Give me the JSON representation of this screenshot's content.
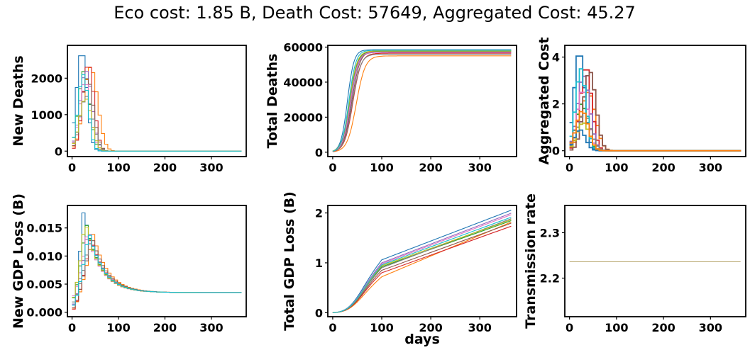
{
  "figure": {
    "suptitle": "Eco cost: 1.85 B, Death Cost: 57649, Aggregated Cost: 45.27"
  },
  "colors": [
    "#1f77b4",
    "#ff7f0e",
    "#2ca02c",
    "#d62728",
    "#9467bd",
    "#8c564b",
    "#e377c2",
    "#7f7f7f",
    "#bcbd22",
    "#17becf"
  ],
  "chart_data": [
    {
      "id": "new_deaths",
      "type": "line",
      "step": true,
      "ylabel": "New Deaths",
      "xlabel": "",
      "xlim": [
        -10,
        375
      ],
      "ylim": [
        -150,
        2900
      ],
      "xticks": [
        0,
        100,
        200,
        300
      ],
      "yticks": [
        0,
        1000,
        2000
      ],
      "series": [
        {
          "peak_day": 21,
          "peak": 2750,
          "width": 11
        },
        {
          "peak_day": 40,
          "peak": 2300,
          "width": 15
        },
        {
          "peak_day": 26,
          "peak": 2200,
          "width": 12
        },
        {
          "peak_day": 35,
          "peak": 2400,
          "width": 12
        },
        {
          "peak_day": 30,
          "peak": 2200,
          "width": 13
        },
        {
          "peak_day": 33,
          "peak": 2000,
          "width": 13
        },
        {
          "peak_day": 28,
          "peak": 1900,
          "width": 12
        },
        {
          "peak_day": 31,
          "peak": 1500,
          "width": 14
        },
        {
          "peak_day": 29,
          "peak": 1450,
          "width": 13
        },
        {
          "peak_day": 24,
          "peak": 2100,
          "width": 11
        }
      ]
    },
    {
      "id": "total_deaths",
      "type": "line",
      "ylabel": "Total Deaths",
      "xlabel": "",
      "xlim": [
        -10,
        375
      ],
      "ylim": [
        -2500,
        61000
      ],
      "xticks": [
        0,
        100,
        200,
        300
      ],
      "yticks": [
        0,
        20000,
        40000,
        60000
      ],
      "series": [
        {
          "final": 58500,
          "midpoint_day": 30,
          "rate": 0.15
        },
        {
          "final": 55000,
          "midpoint_day": 48,
          "rate": 0.11
        },
        {
          "final": 57500,
          "midpoint_day": 35,
          "rate": 0.13
        },
        {
          "final": 56500,
          "midpoint_day": 41,
          "rate": 0.12
        },
        {
          "final": 57000,
          "midpoint_day": 37,
          "rate": 0.13
        },
        {
          "final": 58000,
          "midpoint_day": 39,
          "rate": 0.12
        },
        {
          "final": 57200,
          "midpoint_day": 36,
          "rate": 0.13
        },
        {
          "final": 56000,
          "midpoint_day": 40,
          "rate": 0.12
        },
        {
          "final": 57800,
          "midpoint_day": 34,
          "rate": 0.13
        },
        {
          "final": 58200,
          "midpoint_day": 33,
          "rate": 0.14
        }
      ]
    },
    {
      "id": "aggregated_cost",
      "type": "line",
      "step": true,
      "ylabel": "Aggregated Cost",
      "xlabel": "",
      "xlim": [
        -10,
        375
      ],
      "ylim": [
        -0.25,
        4.5
      ],
      "xticks": [
        0,
        100,
        200,
        300
      ],
      "yticks": [
        0,
        2,
        4
      ],
      "series": [
        {
          "peak_day": 21,
          "peak": 4.25,
          "width": 11
        },
        {
          "peak_day": 40,
          "peak": 2.5,
          "width": 15
        },
        {
          "peak_day": 26,
          "peak": 2.0,
          "width": 12
        },
        {
          "peak_day": 35,
          "peak": 3.6,
          "width": 12
        },
        {
          "peak_day": 30,
          "peak": 3.2,
          "width": 13
        },
        {
          "peak_day": 43,
          "peak": 3.4,
          "width": 13
        },
        {
          "peak_day": 28,
          "peak": 2.6,
          "width": 12
        },
        {
          "peak_day": 31,
          "peak": 1.6,
          "width": 14
        },
        {
          "peak_day": 29,
          "peak": 1.2,
          "width": 13
        },
        {
          "peak_day": 24,
          "peak": 3.5,
          "width": 11
        },
        {
          "peak_day": 22,
          "peak": 0.9,
          "width": 12
        },
        {
          "peak_day": 27,
          "peak": 1.7,
          "width": 13
        }
      ]
    },
    {
      "id": "new_gdp_loss",
      "type": "line",
      "step": true,
      "ylabel": "New GDP Loss (B)",
      "xlabel": "",
      "xlim": [
        -10,
        375
      ],
      "ylim": [
        -0.0008,
        0.019
      ],
      "xticks": [
        0,
        100,
        200,
        300
      ],
      "yticks": [
        0.0,
        0.005,
        0.01,
        0.015
      ],
      "ytick_labels": [
        "0.000",
        "0.005",
        "0.010",
        "0.015"
      ],
      "baseline": 0.0035,
      "series": [
        {
          "peak_day": 25,
          "peak": 0.0182,
          "start": 0.0005
        },
        {
          "peak_day": 45,
          "peak": 0.014,
          "start": 0.0003
        },
        {
          "peak_day": 30,
          "peak": 0.016,
          "start": 0.002
        },
        {
          "peak_day": 40,
          "peak": 0.0135,
          "start": 0.0002
        },
        {
          "peak_day": 35,
          "peak": 0.015,
          "start": 0.001
        },
        {
          "peak_day": 42,
          "peak": 0.0138,
          "start": 0.0005
        },
        {
          "peak_day": 33,
          "peak": 0.0142,
          "start": 0.0025
        },
        {
          "peak_day": 38,
          "peak": 0.013,
          "start": 0.0015
        },
        {
          "peak_day": 28,
          "peak": 0.0165,
          "start": 0.002
        },
        {
          "peak_day": 36,
          "peak": 0.0145,
          "start": 0.0008
        }
      ]
    },
    {
      "id": "total_gdp_loss",
      "type": "line",
      "ylabel": "Total GDP Loss (B)",
      "xlabel": "days",
      "xlim": [
        -10,
        375
      ],
      "ylim": [
        -0.08,
        2.15
      ],
      "xticks": [
        0,
        100,
        200,
        300
      ],
      "yticks": [
        0,
        1,
        2
      ],
      "series": [
        {
          "final": 2.04,
          "at100": 1.06
        },
        {
          "final": 1.8,
          "at100": 0.72
        },
        {
          "final": 1.83,
          "at100": 0.92
        },
        {
          "final": 1.72,
          "at100": 0.8
        },
        {
          "final": 1.98,
          "at100": 1.0
        },
        {
          "final": 1.78,
          "at100": 0.85
        },
        {
          "final": 1.95,
          "at100": 0.98
        },
        {
          "final": 1.87,
          "at100": 0.9
        },
        {
          "final": 1.85,
          "at100": 0.94
        },
        {
          "final": 1.9,
          "at100": 0.96
        }
      ]
    },
    {
      "id": "transmission_rate",
      "type": "line",
      "ylabel": "Transmission rate",
      "xlabel": "",
      "xlim": [
        -10,
        375
      ],
      "ylim": [
        2.115,
        2.36
      ],
      "xticks": [
        0,
        100,
        200,
        300
      ],
      "yticks": [
        2.2,
        2.3
      ],
      "ytick_labels": [
        "2.2",
        "2.3"
      ],
      "series": [
        {
          "value": 2.236,
          "color": "#b5a46a"
        }
      ]
    }
  ]
}
